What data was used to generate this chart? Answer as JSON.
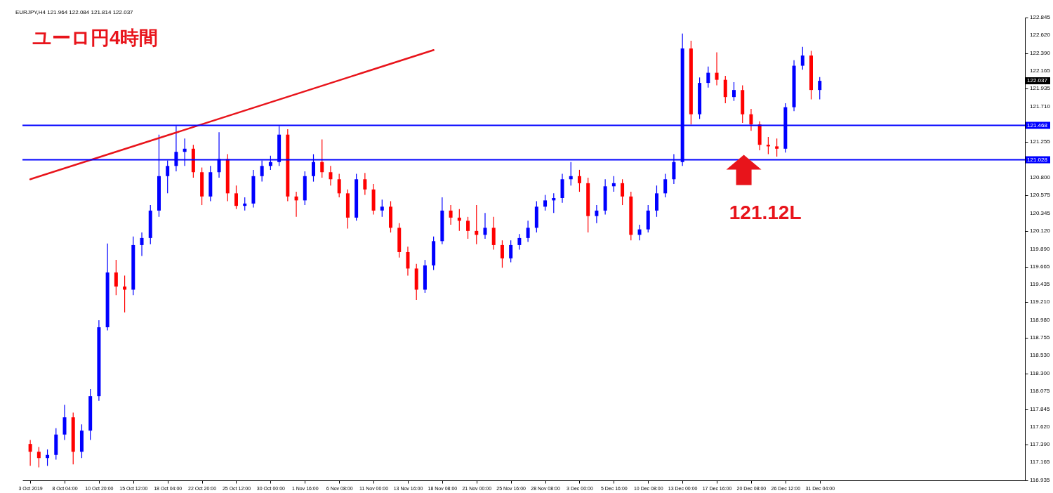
{
  "chart_data": {
    "type": "candlestick",
    "title": "ユーロ円4時間",
    "categories": [
      "3 Oct 2019",
      null,
      null,
      null,
      "8 Oct 04:00",
      null,
      null,
      null,
      "10 Oct 20:00",
      null,
      null,
      null,
      "15 Oct 12:00",
      null,
      null,
      null,
      "18 Oct 04:00",
      null,
      null,
      null,
      "22 Oct 20:00",
      null,
      null,
      null,
      "25 Oct 12:00",
      null,
      null,
      null,
      "30 Oct 00:00",
      null,
      null,
      null,
      "1 Nov 16:00",
      null,
      null,
      null,
      "6 Nov 08:00",
      null,
      null,
      null,
      "11 Nov 00:00",
      null,
      null,
      null,
      "13 Nov 16:00",
      null,
      null,
      null,
      "18 Nov 08:00",
      null,
      null,
      null,
      "21 Nov 00:00",
      null,
      null,
      null,
      "25 Nov 16:00",
      null,
      null,
      null,
      "28 Nov 08:00",
      null,
      null,
      null,
      "3 Dec 00:00",
      null,
      null,
      null,
      "5 Dec 16:00",
      null,
      null,
      null,
      "10 Dec 08:00",
      null,
      null,
      null,
      "13 Dec 00:00",
      null,
      null,
      null,
      "17 Dec 16:00",
      null,
      null,
      null,
      "20 Dec 08:00",
      null,
      null,
      null,
      "26 Dec 12:00",
      null,
      null,
      null,
      "31 Dec 04:00",
      null,
      null,
      null,
      null,
      null,
      null,
      null,
      null,
      null,
      null,
      null,
      null,
      null,
      null,
      null,
      null,
      null,
      null,
      null,
      null,
      null,
      null,
      null
    ],
    "ohlc": [
      [
        117.4,
        117.45,
        117.12,
        117.3
      ],
      [
        117.3,
        117.36,
        117.1,
        117.22
      ],
      [
        117.22,
        117.33,
        117.12,
        117.26
      ],
      [
        117.26,
        117.6,
        117.2,
        117.52
      ],
      [
        117.52,
        117.9,
        117.45,
        117.74
      ],
      [
        117.74,
        117.8,
        117.14,
        117.3
      ],
      [
        117.3,
        117.65,
        117.22,
        117.57
      ],
      [
        117.57,
        118.1,
        117.45,
        118.01
      ],
      [
        118.01,
        118.98,
        117.95,
        118.89
      ],
      [
        118.89,
        119.96,
        118.85,
        119.59
      ],
      [
        119.59,
        119.75,
        119.3,
        119.41
      ],
      [
        119.41,
        119.55,
        119.08,
        119.37
      ],
      [
        119.37,
        120.05,
        119.3,
        119.94
      ],
      [
        119.94,
        120.1,
        119.8,
        120.03
      ],
      [
        120.03,
        120.45,
        119.95,
        120.38
      ],
      [
        120.38,
        121.35,
        120.3,
        120.82
      ],
      [
        120.82,
        121.02,
        120.6,
        120.95
      ],
      [
        120.95,
        121.46,
        120.88,
        121.13
      ],
      [
        121.13,
        121.3,
        120.95,
        121.17
      ],
      [
        121.17,
        121.22,
        120.8,
        120.87
      ],
      [
        120.87,
        120.93,
        120.45,
        120.56
      ],
      [
        120.56,
        120.95,
        120.5,
        120.87
      ],
      [
        120.87,
        121.38,
        120.8,
        121.04
      ],
      [
        121.04,
        121.1,
        120.5,
        120.6
      ],
      [
        120.6,
        120.7,
        120.4,
        120.44
      ],
      [
        120.44,
        120.55,
        120.38,
        120.47
      ],
      [
        120.47,
        120.9,
        120.42,
        120.82
      ],
      [
        120.82,
        121.02,
        120.75,
        120.95
      ],
      [
        120.95,
        121.08,
        120.9,
        121.0
      ],
      [
        121.0,
        121.46,
        120.95,
        121.35
      ],
      [
        121.35,
        121.42,
        120.5,
        120.56
      ],
      [
        120.56,
        120.62,
        120.3,
        120.51
      ],
      [
        120.51,
        120.88,
        120.45,
        120.82
      ],
      [
        120.82,
        121.1,
        120.75,
        121.0
      ],
      [
        121.0,
        121.29,
        120.8,
        120.87
      ],
      [
        120.87,
        120.95,
        120.7,
        120.78
      ],
      [
        120.78,
        120.85,
        120.55,
        120.6
      ],
      [
        120.6,
        120.65,
        120.15,
        120.29
      ],
      [
        120.29,
        120.85,
        120.25,
        120.78
      ],
      [
        120.78,
        120.86,
        120.58,
        120.65
      ],
      [
        120.65,
        120.72,
        120.33,
        120.38
      ],
      [
        120.38,
        120.52,
        120.3,
        120.43
      ],
      [
        120.43,
        120.5,
        120.1,
        120.16
      ],
      [
        120.16,
        120.22,
        119.78,
        119.85
      ],
      [
        119.85,
        119.92,
        119.55,
        119.64
      ],
      [
        119.64,
        119.7,
        119.24,
        119.37
      ],
      [
        119.37,
        119.75,
        119.33,
        119.68
      ],
      [
        119.68,
        120.05,
        119.62,
        119.99
      ],
      [
        119.99,
        120.55,
        119.95,
        120.38
      ],
      [
        120.38,
        120.45,
        120.2,
        120.29
      ],
      [
        120.29,
        120.4,
        120.12,
        120.25
      ],
      [
        120.25,
        120.3,
        120.02,
        120.12
      ],
      [
        120.12,
        120.45,
        119.95,
        120.07
      ],
      [
        120.07,
        120.35,
        120.02,
        120.16
      ],
      [
        120.16,
        120.3,
        119.88,
        119.94
      ],
      [
        119.94,
        120.0,
        119.65,
        119.77
      ],
      [
        119.77,
        120.0,
        119.72,
        119.94
      ],
      [
        119.94,
        120.08,
        119.88,
        120.03
      ],
      [
        120.03,
        120.25,
        119.98,
        120.16
      ],
      [
        120.16,
        120.5,
        120.1,
        120.43
      ],
      [
        120.43,
        120.58,
        120.38,
        120.51
      ],
      [
        120.51,
        120.6,
        120.35,
        120.54
      ],
      [
        120.54,
        120.85,
        120.48,
        120.78
      ],
      [
        120.78,
        121.0,
        120.7,
        120.82
      ],
      [
        120.82,
        120.9,
        120.62,
        120.73
      ],
      [
        120.73,
        120.8,
        120.1,
        120.31
      ],
      [
        120.31,
        120.45,
        120.22,
        120.38
      ],
      [
        120.38,
        120.78,
        120.33,
        120.69
      ],
      [
        120.69,
        120.82,
        120.62,
        120.73
      ],
      [
        120.73,
        120.78,
        120.45,
        120.56
      ],
      [
        120.56,
        120.62,
        120.0,
        120.07
      ],
      [
        120.07,
        120.2,
        120.0,
        120.14
      ],
      [
        120.14,
        120.45,
        120.1,
        120.38
      ],
      [
        120.38,
        120.7,
        120.3,
        120.6
      ],
      [
        120.6,
        120.85,
        120.55,
        120.78
      ],
      [
        120.78,
        121.1,
        120.72,
        121.0
      ],
      [
        121.0,
        122.64,
        120.95,
        122.45
      ],
      [
        122.45,
        122.55,
        121.48,
        121.61
      ],
      [
        121.61,
        122.08,
        121.55,
        122.01
      ],
      [
        122.01,
        122.22,
        121.95,
        122.14
      ],
      [
        122.14,
        122.4,
        121.98,
        122.05
      ],
      [
        122.05,
        122.1,
        121.75,
        121.83
      ],
      [
        121.83,
        122.02,
        121.78,
        121.92
      ],
      [
        121.92,
        121.98,
        121.5,
        121.61
      ],
      [
        121.61,
        121.68,
        121.4,
        121.48
      ],
      [
        121.48,
        121.52,
        121.15,
        121.22
      ],
      [
        121.22,
        121.32,
        121.1,
        121.2
      ],
      [
        121.2,
        121.3,
        121.07,
        121.17
      ],
      [
        121.17,
        121.75,
        121.12,
        121.7
      ],
      [
        121.7,
        122.3,
        121.65,
        122.23
      ],
      [
        122.23,
        122.47,
        122.18,
        122.36
      ],
      [
        122.36,
        122.42,
        121.8,
        121.92
      ],
      [
        121.92,
        122.084,
        121.8,
        122.037
      ],
      null,
      null,
      null,
      null,
      null,
      null,
      null,
      null,
      null,
      null,
      null,
      null,
      null,
      null,
      null,
      null,
      null,
      null,
      null,
      null,
      null,
      null,
      null
    ],
    "colors": [
      "#ff0000",
      "#ff0000",
      "#0000ff",
      "#0000ff",
      "#0000ff",
      "#ff0000",
      "#0000ff",
      "#0000ff",
      "#0000ff",
      "#0000ff",
      "#ff0000",
      "#ff0000",
      "#0000ff",
      "#0000ff",
      "#0000ff",
      "#0000ff",
      "#0000ff",
      "#0000ff",
      "#0000ff",
      "#ff0000",
      "#ff0000",
      "#0000ff",
      "#0000ff",
      "#ff0000",
      "#ff0000",
      "#0000ff",
      "#0000ff",
      "#0000ff",
      "#0000ff",
      "#0000ff",
      "#ff0000",
      "#ff0000",
      "#0000ff",
      "#0000ff",
      "#ff0000",
      "#ff0000",
      "#ff0000",
      "#ff0000",
      "#0000ff",
      "#ff0000",
      "#ff0000",
      "#0000ff",
      "#ff0000",
      "#ff0000",
      "#ff0000",
      "#ff0000",
      "#0000ff",
      "#0000ff",
      "#0000ff",
      "#ff0000",
      "#ff0000",
      "#ff0000",
      "#ff0000",
      "#0000ff",
      "#ff0000",
      "#ff0000",
      "#0000ff",
      "#0000ff",
      "#0000ff",
      "#0000ff",
      "#0000ff",
      "#0000ff",
      "#0000ff",
      "#0000ff",
      "#ff0000",
      "#ff0000",
      "#0000ff",
      "#0000ff",
      "#0000ff",
      "#ff0000",
      "#ff0000",
      "#0000ff",
      "#0000ff",
      "#0000ff",
      "#0000ff",
      "#0000ff",
      "#0000ff",
      "#ff0000",
      "#0000ff",
      "#0000ff",
      "#ff0000",
      "#ff0000",
      "#0000ff",
      "#ff0000",
      "#ff0000",
      "#ff0000",
      "#ff0000",
      "#ff0000",
      "#0000ff",
      "#0000ff",
      "#0000ff",
      "#ff0000",
      "#0000ff",
      null,
      null,
      null,
      null,
      null,
      null,
      null,
      null,
      null,
      null,
      null,
      null,
      null,
      null,
      null,
      null,
      null,
      null,
      null,
      null,
      null,
      null,
      null
    ],
    "series": [
      {
        "type": "line",
        "color": "#e8141b",
        "values": [
          120.78,
          null,
          null,
          null,
          null,
          null,
          null,
          null,
          null,
          null,
          null,
          null,
          null,
          null,
          null,
          null,
          null,
          null,
          null,
          null,
          null,
          null,
          null,
          null,
          null,
          null,
          null,
          null,
          null,
          null,
          null,
          null,
          null,
          null,
          null,
          null,
          null,
          null,
          null,
          null,
          null,
          null,
          null,
          null,
          null,
          null,
          null,
          122.43,
          null,
          null,
          null,
          null,
          null,
          null,
          null,
          null,
          null,
          null,
          null,
          null,
          null,
          null,
          null,
          null,
          null,
          null,
          null,
          null,
          null,
          null,
          null,
          null,
          null,
          null,
          null,
          null,
          null,
          null,
          null,
          null,
          null,
          null,
          null,
          null,
          null,
          null,
          null,
          null,
          null,
          null,
          null,
          null,
          null,
          null,
          null,
          null,
          null,
          null,
          null,
          null,
          null,
          null,
          null,
          null,
          null,
          null,
          null,
          null,
          null,
          null,
          null,
          null,
          null,
          null,
          null,
          null
        ]
      }
    ],
    "ref_lines": [
      {
        "axis": "y",
        "value": 121.468,
        "label": "121.468",
        "color": "#0000ff"
      },
      {
        "axis": "y",
        "value": 121.028,
        "label": "121.028",
        "color": "#0000ff"
      }
    ],
    "annotations": [
      "EURJPY,H4 121.964 122.084 121.814 122.037",
      "121.12L",
      "122.037"
    ],
    "ylim": [
      116.935,
      122.845
    ],
    "yticks": [
      122.845,
      {
        "value": 122.62,
        "label": "122.620"
      },
      {
        "value": 122.39,
        "label": "122.390"
      },
      122.165,
      121.935,
      {
        "value": 121.71,
        "label": "121.710"
      },
      121.255,
      {
        "value": 120.8,
        "label": "120.800"
      },
      120.575,
      120.345,
      {
        "value": 120.12,
        "label": "120.120"
      },
      {
        "value": 119.89,
        "label": "119.890"
      },
      119.665,
      119.435,
      {
        "value": 119.21,
        "label": "119.210"
      },
      {
        "value": 118.98,
        "label": "118.980"
      },
      118.755,
      {
        "value": 118.53,
        "label": "118.530"
      },
      {
        "value": 118.3,
        "label": "118.300"
      },
      118.075,
      117.845,
      {
        "value": 117.62,
        "label": "117.620"
      },
      {
        "value": 117.39,
        "label": "117.390"
      },
      117.165,
      116.935
    ]
  }
}
